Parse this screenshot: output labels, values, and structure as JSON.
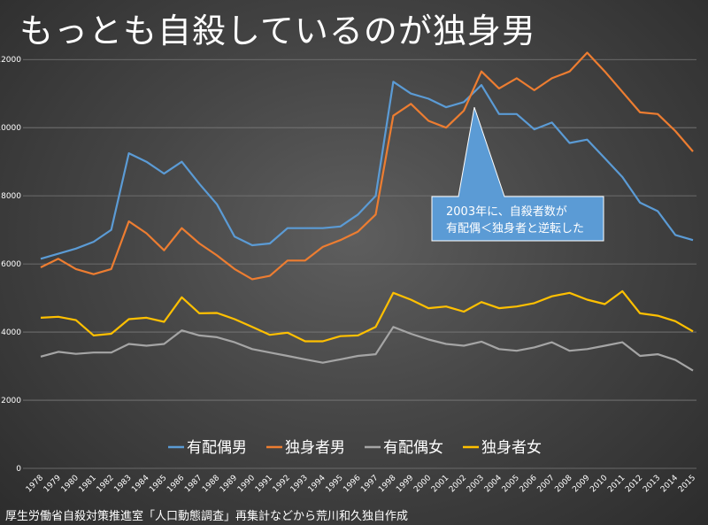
{
  "title": "もっとも自殺しているのが独身男",
  "source": "厚生労働省自殺対策推進室「人口動態調査」再集計などから荒川和久独自作成",
  "chart_data": {
    "type": "line",
    "x": [
      1978,
      1979,
      1980,
      1981,
      1982,
      1983,
      1984,
      1985,
      1986,
      1987,
      1988,
      1989,
      1990,
      1991,
      1992,
      1993,
      1994,
      1995,
      1996,
      1997,
      1998,
      1999,
      2000,
      2001,
      2002,
      2003,
      2004,
      2005,
      2006,
      2007,
      2008,
      2009,
      2010,
      2011,
      2012,
      2013,
      2014,
      2015
    ],
    "ylim": [
      0,
      12500
    ],
    "yticks": [
      0,
      2000,
      4000,
      6000,
      8000,
      10000,
      12000
    ],
    "grid": true,
    "legend_position": "bottom",
    "series": [
      {
        "name": "有配偶男",
        "color": "#5b9bd5",
        "values": [
          6150,
          6300,
          6450,
          6650,
          7000,
          9250,
          9000,
          8650,
          9000,
          8350,
          7750,
          6800,
          6550,
          6600,
          7050,
          7050,
          7050,
          7100,
          7450,
          8000,
          11350,
          11000,
          10850,
          10600,
          10750,
          11250,
          10400,
          10400,
          9950,
          10150,
          9550,
          9650,
          9100,
          8550,
          7800,
          7550,
          6850,
          6700
        ]
      },
      {
        "name": "独身者男",
        "color": "#ed7d31",
        "values": [
          5900,
          6150,
          5850,
          5700,
          5850,
          7250,
          6900,
          6400,
          7050,
          6600,
          6250,
          5850,
          5550,
          5650,
          6100,
          6100,
          6500,
          6700,
          6950,
          7450,
          10350,
          10700,
          10200,
          10000,
          10500,
          11650,
          11150,
          11450,
          11100,
          11450,
          11650,
          12200,
          11650,
          11050,
          10450,
          10400,
          9900,
          9300
        ]
      },
      {
        "name": "有配偶女",
        "color": "#a5a5a5",
        "values": [
          3280,
          3420,
          3360,
          3400,
          3400,
          3650,
          3600,
          3650,
          4050,
          3900,
          3850,
          3700,
          3500,
          3400,
          3300,
          3200,
          3100,
          3200,
          3300,
          3350,
          4150,
          3950,
          3780,
          3650,
          3600,
          3720,
          3500,
          3450,
          3550,
          3700,
          3450,
          3500,
          3600,
          3700,
          3300,
          3350,
          3180,
          2870
        ]
      },
      {
        "name": "独身者女",
        "color": "#ffc000",
        "values": [
          4420,
          4450,
          4350,
          3900,
          3950,
          4380,
          4420,
          4300,
          5020,
          4550,
          4560,
          4380,
          4150,
          3920,
          3980,
          3730,
          3730,
          3880,
          3900,
          4150,
          5150,
          4950,
          4700,
          4750,
          4600,
          4880,
          4700,
          4750,
          4850,
          5050,
          5150,
          4950,
          4820,
          5200,
          4550,
          4480,
          4320,
          4020
        ]
      }
    ],
    "annotation": {
      "lines": [
        "2003年に、自殺者数が",
        "有配偶＜独身者と逆転した"
      ],
      "color": "#5b9bd5",
      "target_x": 2003
    }
  }
}
